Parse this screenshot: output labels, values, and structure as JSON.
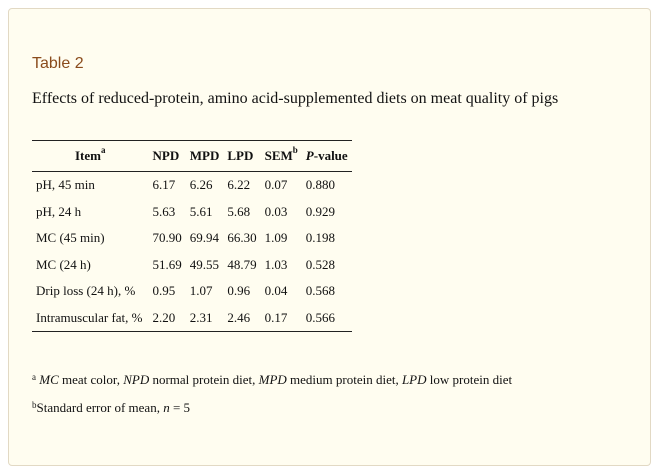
{
  "table": {
    "label": "Table 2",
    "caption": "Effects of reduced-protein, amino acid-supplemented diets on meat quality of pigs",
    "headers": {
      "item": "Item",
      "item_sup": "a",
      "npd": "NPD",
      "mpd": "MPD",
      "lpd": "LPD",
      "sem": "SEM",
      "sem_sup": "b",
      "p_italic": "P",
      "p_rest": "-value"
    },
    "rows": [
      {
        "item": "pH, 45 min",
        "npd": "6.17",
        "mpd": "6.26",
        "lpd": "6.22",
        "sem": "0.07",
        "p": "0.880"
      },
      {
        "item": "pH, 24 h",
        "npd": "5.63",
        "mpd": "5.61",
        "lpd": "5.68",
        "sem": "0.03",
        "p": "0.929"
      },
      {
        "item": "MC (45 min)",
        "npd": "70.90",
        "mpd": "69.94",
        "lpd": "66.30",
        "sem": "1.09",
        "p": "0.198"
      },
      {
        "item": "MC (24 h)",
        "npd": "51.69",
        "mpd": "49.55",
        "lpd": "48.79",
        "sem": "1.03",
        "p": "0.528"
      },
      {
        "item": "Drip loss (24 h), %",
        "npd": "0.95",
        "mpd": "1.07",
        "lpd": "0.96",
        "sem": "0.04",
        "p": "0.568"
      },
      {
        "item": "Intramuscular fat, %",
        "npd": "2.20",
        "mpd": "2.31",
        "lpd": "2.46",
        "sem": "0.17",
        "p": "0.566"
      }
    ]
  },
  "footnotes": {
    "a_mark": "a",
    "a_parts": [
      {
        "abbr": "MC",
        "text": " meat color, "
      },
      {
        "abbr": "NPD",
        "text": " normal protein diet, "
      },
      {
        "abbr": "MPD",
        "text": " medium protein diet, "
      },
      {
        "abbr": "LPD",
        "text": " low protein diet"
      }
    ],
    "b_mark": "b",
    "b_text": "Standard error of mean, ",
    "b_n": "n",
    "b_eq": " = 5"
  },
  "colors": {
    "label": "#8a4b1c",
    "background": "#fffdf0",
    "border": "#e2d9c4"
  }
}
